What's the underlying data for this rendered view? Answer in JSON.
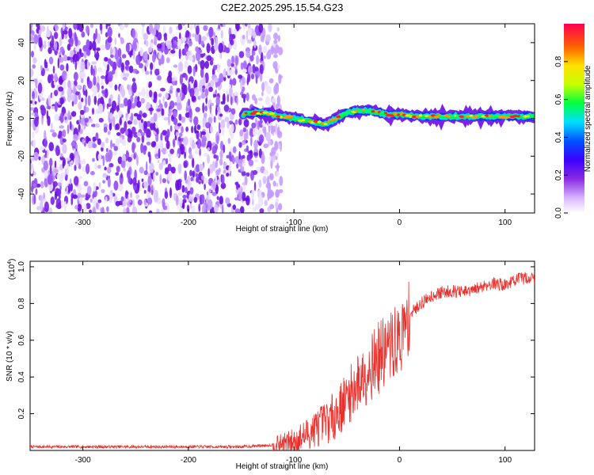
{
  "title": "C2E2.2025.295.15.54.G23",
  "chart_data": [
    {
      "type": "heatmap",
      "name": "spectrogram",
      "xlabel": "Height of straight line (km)",
      "ylabel": "Frequency (Hz)",
      "xlim": [
        -350,
        128
      ],
      "ylim": [
        -50,
        50
      ],
      "xticks": [
        -300,
        -200,
        -100,
        0,
        100
      ],
      "yticks": [
        -40,
        -20,
        0,
        20,
        40
      ],
      "noise_region_x": [
        -350,
        -120
      ],
      "signal_region_x": [
        -148,
        128
      ],
      "signal_trace": {
        "x": [
          -148,
          -140,
          -130,
          -120,
          -110,
          -100,
          -90,
          -80,
          -70,
          -60,
          -50,
          -40,
          -30,
          -20,
          -10,
          0,
          20,
          40,
          60,
          80,
          100,
          128
        ],
        "freq": [
          2,
          3,
          3,
          2,
          1,
          0,
          -1,
          -2,
          -3,
          0,
          3,
          4,
          4,
          3,
          2,
          2,
          1,
          1,
          1,
          1,
          1,
          1
        ]
      },
      "colorbar": {
        "label": "Normalized spectral amplitude",
        "range": [
          0,
          1
        ],
        "ticks": [
          "0.0",
          "0.2",
          "0.4",
          "0.6",
          "0.8"
        ]
      }
    },
    {
      "type": "line",
      "name": "snr",
      "xlabel": "Height of straight line (km)",
      "ylabel": "SNR (10 * v/v)",
      "multiplier": "(x10",
      "multiplier_exp": "4",
      "xlim": [
        -350,
        128
      ],
      "ylim": [
        0,
        1.03
      ],
      "xticks": [
        -300,
        -200,
        -100,
        0,
        100
      ],
      "yticks": [
        "0.2",
        "0.4",
        "0.6",
        "0.8",
        "1.0"
      ],
      "color": "#e8302c",
      "series": {
        "x": [
          -350,
          -300,
          -250,
          -200,
          -150,
          -120,
          -100,
          -90,
          -80,
          -70,
          -60,
          -50,
          -40,
          -30,
          -20,
          -10,
          0,
          5,
          10,
          20,
          30,
          40,
          50,
          60,
          70,
          80,
          90,
          100,
          110,
          120,
          128
        ],
        "mean": [
          0.02,
          0.02,
          0.02,
          0.02,
          0.02,
          0.03,
          0.05,
          0.08,
          0.12,
          0.15,
          0.2,
          0.28,
          0.36,
          0.44,
          0.5,
          0.56,
          0.6,
          0.66,
          0.74,
          0.8,
          0.84,
          0.86,
          0.87,
          0.86,
          0.87,
          0.9,
          0.91,
          0.9,
          0.93,
          0.94,
          0.94
        ]
      }
    }
  ]
}
